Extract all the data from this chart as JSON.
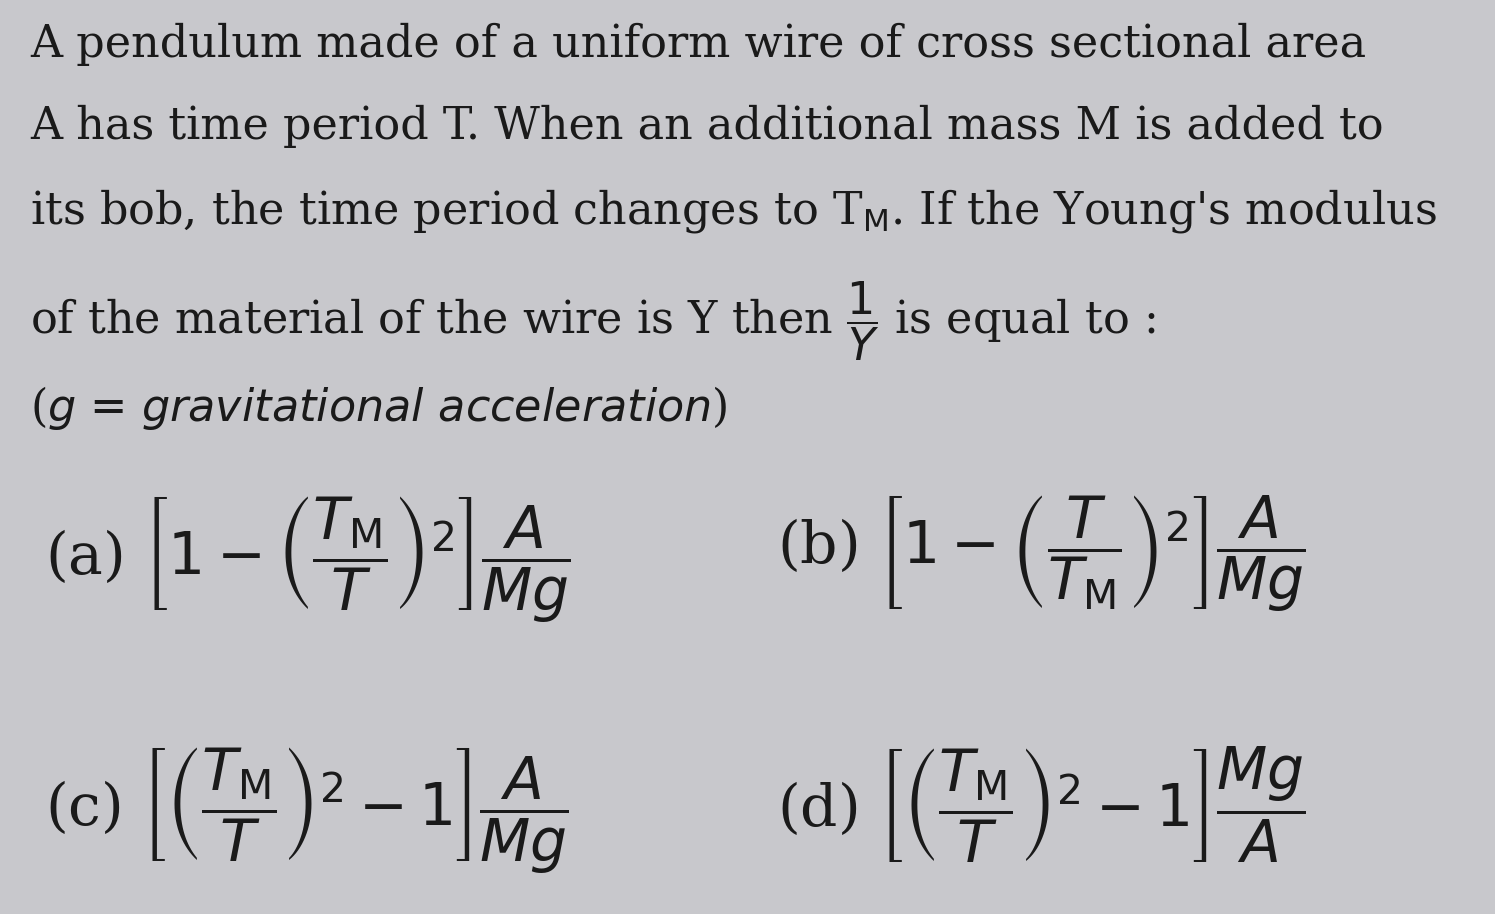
{
  "background_color": "#c8c8cc",
  "text_color": "#1a1a1a",
  "line1": "A pendulum made of a uniform wire of cross sectional area",
  "line2": "A has time period T. When an additional mass M is added to",
  "line3": "its bob, the time period changes to T$_{\\rm M}$. If the Young's modulus",
  "line4": "of the material of the wire is Y then $\\dfrac{1}{Y}$ is equal to :",
  "line5": "($g$ = $\\it{gravitational\\ acceleration}$)",
  "option_a": "(a) $\\left[1-\\left(\\dfrac{T_{\\rm M}}{T}\\right)^{2}\\right]\\dfrac{A}{Mg}$",
  "option_b": "(b) $\\left[1-\\left(\\dfrac{T}{T_{\\rm M}}\\right)^{2}\\right]\\dfrac{A}{Mg}$",
  "option_c": "(c) $\\left[\\left(\\dfrac{T_{\\rm M}}{T}\\right)^{2}-1\\right]\\dfrac{A}{Mg}$",
  "option_d": "(d) $\\left[\\left(\\dfrac{T_{\\rm M}}{T}\\right)^{2}-1\\right]\\dfrac{Mg}{A}$",
  "fontsize_text": 32,
  "fontsize_options": 42,
  "fig_width": 14.95,
  "fig_height": 9.14,
  "dpi": 100
}
